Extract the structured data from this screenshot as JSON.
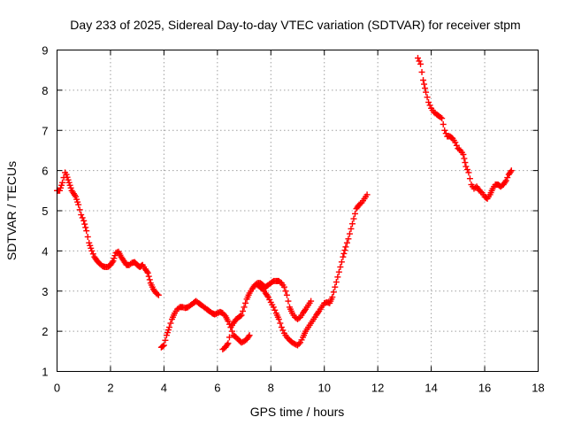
{
  "chart_data": {
    "type": "scatter",
    "title": "Day 233 of 2025, Sidereal Day-to-day VTEC variation (SDTVAR) for receiver stpm",
    "xlabel": "GPS time / hours",
    "ylabel": "SDTVAR / TECUs",
    "xlim": [
      0,
      18
    ],
    "ylim": [
      1,
      9
    ],
    "xticks": [
      0,
      2,
      4,
      6,
      8,
      10,
      12,
      14,
      16,
      18
    ],
    "yticks": [
      1,
      2,
      3,
      4,
      5,
      6,
      7,
      8,
      9
    ],
    "grid": true,
    "marker": "+",
    "color": "#ff0000",
    "series": [
      {
        "name": "SDTVAR",
        "segments": [
          [
            [
              0.0,
              5.5
            ],
            [
              0.1,
              5.5
            ],
            [
              0.2,
              5.7
            ],
            [
              0.3,
              5.95
            ],
            [
              0.35,
              5.9
            ],
            [
              0.45,
              5.7
            ],
            [
              0.55,
              5.5
            ],
            [
              0.7,
              5.35
            ],
            [
              0.8,
              5.15
            ],
            [
              0.9,
              4.9
            ],
            [
              1.0,
              4.75
            ],
            [
              1.1,
              4.5
            ],
            [
              1.2,
              4.2
            ],
            [
              1.3,
              4.0
            ],
            [
              1.4,
              3.85
            ],
            [
              1.5,
              3.75
            ],
            [
              1.6,
              3.68
            ],
            [
              1.7,
              3.62
            ],
            [
              1.8,
              3.6
            ],
            [
              1.9,
              3.6
            ],
            [
              2.0,
              3.65
            ],
            [
              2.1,
              3.75
            ],
            [
              2.2,
              3.95
            ],
            [
              2.3,
              3.98
            ],
            [
              2.4,
              3.85
            ],
            [
              2.5,
              3.75
            ],
            [
              2.6,
              3.65
            ],
            [
              2.7,
              3.65
            ],
            [
              2.8,
              3.7
            ],
            [
              2.9,
              3.72
            ],
            [
              3.0,
              3.65
            ],
            [
              3.1,
              3.6
            ],
            [
              3.2,
              3.65
            ],
            [
              3.3,
              3.55
            ],
            [
              3.4,
              3.45
            ],
            [
              3.5,
              3.2
            ],
            [
              3.6,
              3.05
            ],
            [
              3.7,
              2.95
            ],
            [
              3.8,
              2.9
            ]
          ],
          [
            [
              3.9,
              1.6
            ],
            [
              4.0,
              1.65
            ],
            [
              4.1,
              1.9
            ],
            [
              4.2,
              2.1
            ],
            [
              4.3,
              2.3
            ],
            [
              4.4,
              2.45
            ],
            [
              4.5,
              2.55
            ],
            [
              4.6,
              2.6
            ],
            [
              4.7,
              2.6
            ],
            [
              4.8,
              2.58
            ],
            [
              4.9,
              2.6
            ],
            [
              5.0,
              2.65
            ],
            [
              5.1,
              2.7
            ],
            [
              5.2,
              2.75
            ],
            [
              5.3,
              2.7
            ],
            [
              5.4,
              2.65
            ],
            [
              5.5,
              2.6
            ],
            [
              5.6,
              2.55
            ],
            [
              5.7,
              2.5
            ],
            [
              5.8,
              2.45
            ],
            [
              5.9,
              2.42
            ],
            [
              6.0,
              2.45
            ],
            [
              6.1,
              2.48
            ],
            [
              6.2,
              2.45
            ],
            [
              6.3,
              2.38
            ],
            [
              6.4,
              2.25
            ],
            [
              6.5,
              2.1
            ],
            [
              6.55,
              2.0
            ],
            [
              6.6,
              1.9
            ],
            [
              6.7,
              1.85
            ],
            [
              6.8,
              1.78
            ],
            [
              6.9,
              1.72
            ],
            [
              7.0,
              1.75
            ],
            [
              7.1,
              1.8
            ],
            [
              7.2,
              1.9
            ]
          ],
          [
            [
              6.2,
              1.55
            ],
            [
              6.3,
              1.6
            ],
            [
              6.4,
              1.7
            ],
            [
              6.45,
              1.85
            ],
            [
              6.5,
              2.1
            ],
            [
              6.6,
              2.2
            ],
            [
              6.7,
              2.3
            ],
            [
              6.8,
              2.35
            ],
            [
              6.9,
              2.4
            ],
            [
              7.0,
              2.6
            ],
            [
              7.1,
              2.8
            ],
            [
              7.2,
              2.95
            ],
            [
              7.3,
              3.05
            ],
            [
              7.4,
              3.15
            ],
            [
              7.5,
              3.2
            ],
            [
              7.6,
              3.2
            ],
            [
              7.7,
              3.15
            ],
            [
              7.8,
              3.1
            ],
            [
              7.9,
              3.15
            ],
            [
              8.0,
              3.2
            ],
            [
              8.1,
              3.25
            ],
            [
              8.2,
              3.25
            ],
            [
              8.3,
              3.25
            ],
            [
              8.4,
              3.2
            ],
            [
              8.5,
              3.1
            ],
            [
              8.6,
              2.9
            ],
            [
              8.7,
              2.6
            ],
            [
              8.8,
              2.45
            ],
            [
              8.9,
              2.35
            ],
            [
              9.0,
              2.3
            ],
            [
              9.1,
              2.35
            ],
            [
              9.2,
              2.45
            ],
            [
              9.3,
              2.55
            ],
            [
              9.4,
              2.65
            ],
            [
              9.5,
              2.75
            ]
          ],
          [
            [
              7.5,
              3.15
            ],
            [
              7.7,
              3.05
            ],
            [
              7.8,
              2.95
            ],
            [
              7.9,
              2.85
            ],
            [
              8.0,
              2.72
            ],
            [
              8.1,
              2.6
            ],
            [
              8.2,
              2.45
            ],
            [
              8.3,
              2.3
            ],
            [
              8.4,
              2.1
            ],
            [
              8.5,
              1.95
            ],
            [
              8.6,
              1.85
            ],
            [
              8.7,
              1.78
            ],
            [
              8.8,
              1.72
            ],
            [
              8.9,
              1.68
            ],
            [
              9.0,
              1.65
            ],
            [
              9.1,
              1.72
            ],
            [
              9.2,
              1.85
            ],
            [
              9.3,
              2.0
            ],
            [
              9.4,
              2.1
            ],
            [
              9.5,
              2.2
            ],
            [
              9.6,
              2.3
            ],
            [
              9.7,
              2.4
            ],
            [
              9.8,
              2.5
            ],
            [
              9.9,
              2.6
            ],
            [
              10.0,
              2.7
            ],
            [
              10.1,
              2.72
            ],
            [
              10.2,
              2.7
            ],
            [
              10.3,
              2.85
            ],
            [
              10.4,
              3.1
            ],
            [
              10.5,
              3.35
            ],
            [
              10.6,
              3.6
            ],
            [
              10.7,
              3.85
            ],
            [
              10.8,
              4.1
            ],
            [
              10.9,
              4.3
            ],
            [
              11.0,
              4.55
            ],
            [
              11.1,
              4.8
            ],
            [
              11.2,
              5.05
            ],
            [
              11.3,
              5.15
            ],
            [
              11.4,
              5.2
            ],
            [
              11.5,
              5.3
            ],
            [
              11.6,
              5.4
            ]
          ],
          [
            [
              13.5,
              8.8
            ],
            [
              13.6,
              8.65
            ],
            [
              13.7,
              8.25
            ],
            [
              13.8,
              7.95
            ],
            [
              13.9,
              7.7
            ],
            [
              14.0,
              7.55
            ],
            [
              14.1,
              7.45
            ],
            [
              14.2,
              7.4
            ],
            [
              14.3,
              7.35
            ],
            [
              14.4,
              7.3
            ],
            [
              14.5,
              7.0
            ],
            [
              14.6,
              6.85
            ],
            [
              14.7,
              6.85
            ],
            [
              14.8,
              6.8
            ],
            [
              14.9,
              6.7
            ],
            [
              15.0,
              6.55
            ],
            [
              15.1,
              6.5
            ],
            [
              15.2,
              6.4
            ],
            [
              15.3,
              6.1
            ],
            [
              15.4,
              5.95
            ],
            [
              15.5,
              5.65
            ],
            [
              15.6,
              5.55
            ],
            [
              15.7,
              5.6
            ],
            [
              15.8,
              5.5
            ],
            [
              15.9,
              5.45
            ],
            [
              16.0,
              5.35
            ],
            [
              16.1,
              5.3
            ],
            [
              16.2,
              5.4
            ],
            [
              16.3,
              5.55
            ],
            [
              16.4,
              5.65
            ],
            [
              16.5,
              5.65
            ],
            [
              16.6,
              5.6
            ],
            [
              16.7,
              5.65
            ],
            [
              16.8,
              5.75
            ],
            [
              16.9,
              5.9
            ],
            [
              17.0,
              6.0
            ]
          ]
        ]
      }
    ]
  }
}
